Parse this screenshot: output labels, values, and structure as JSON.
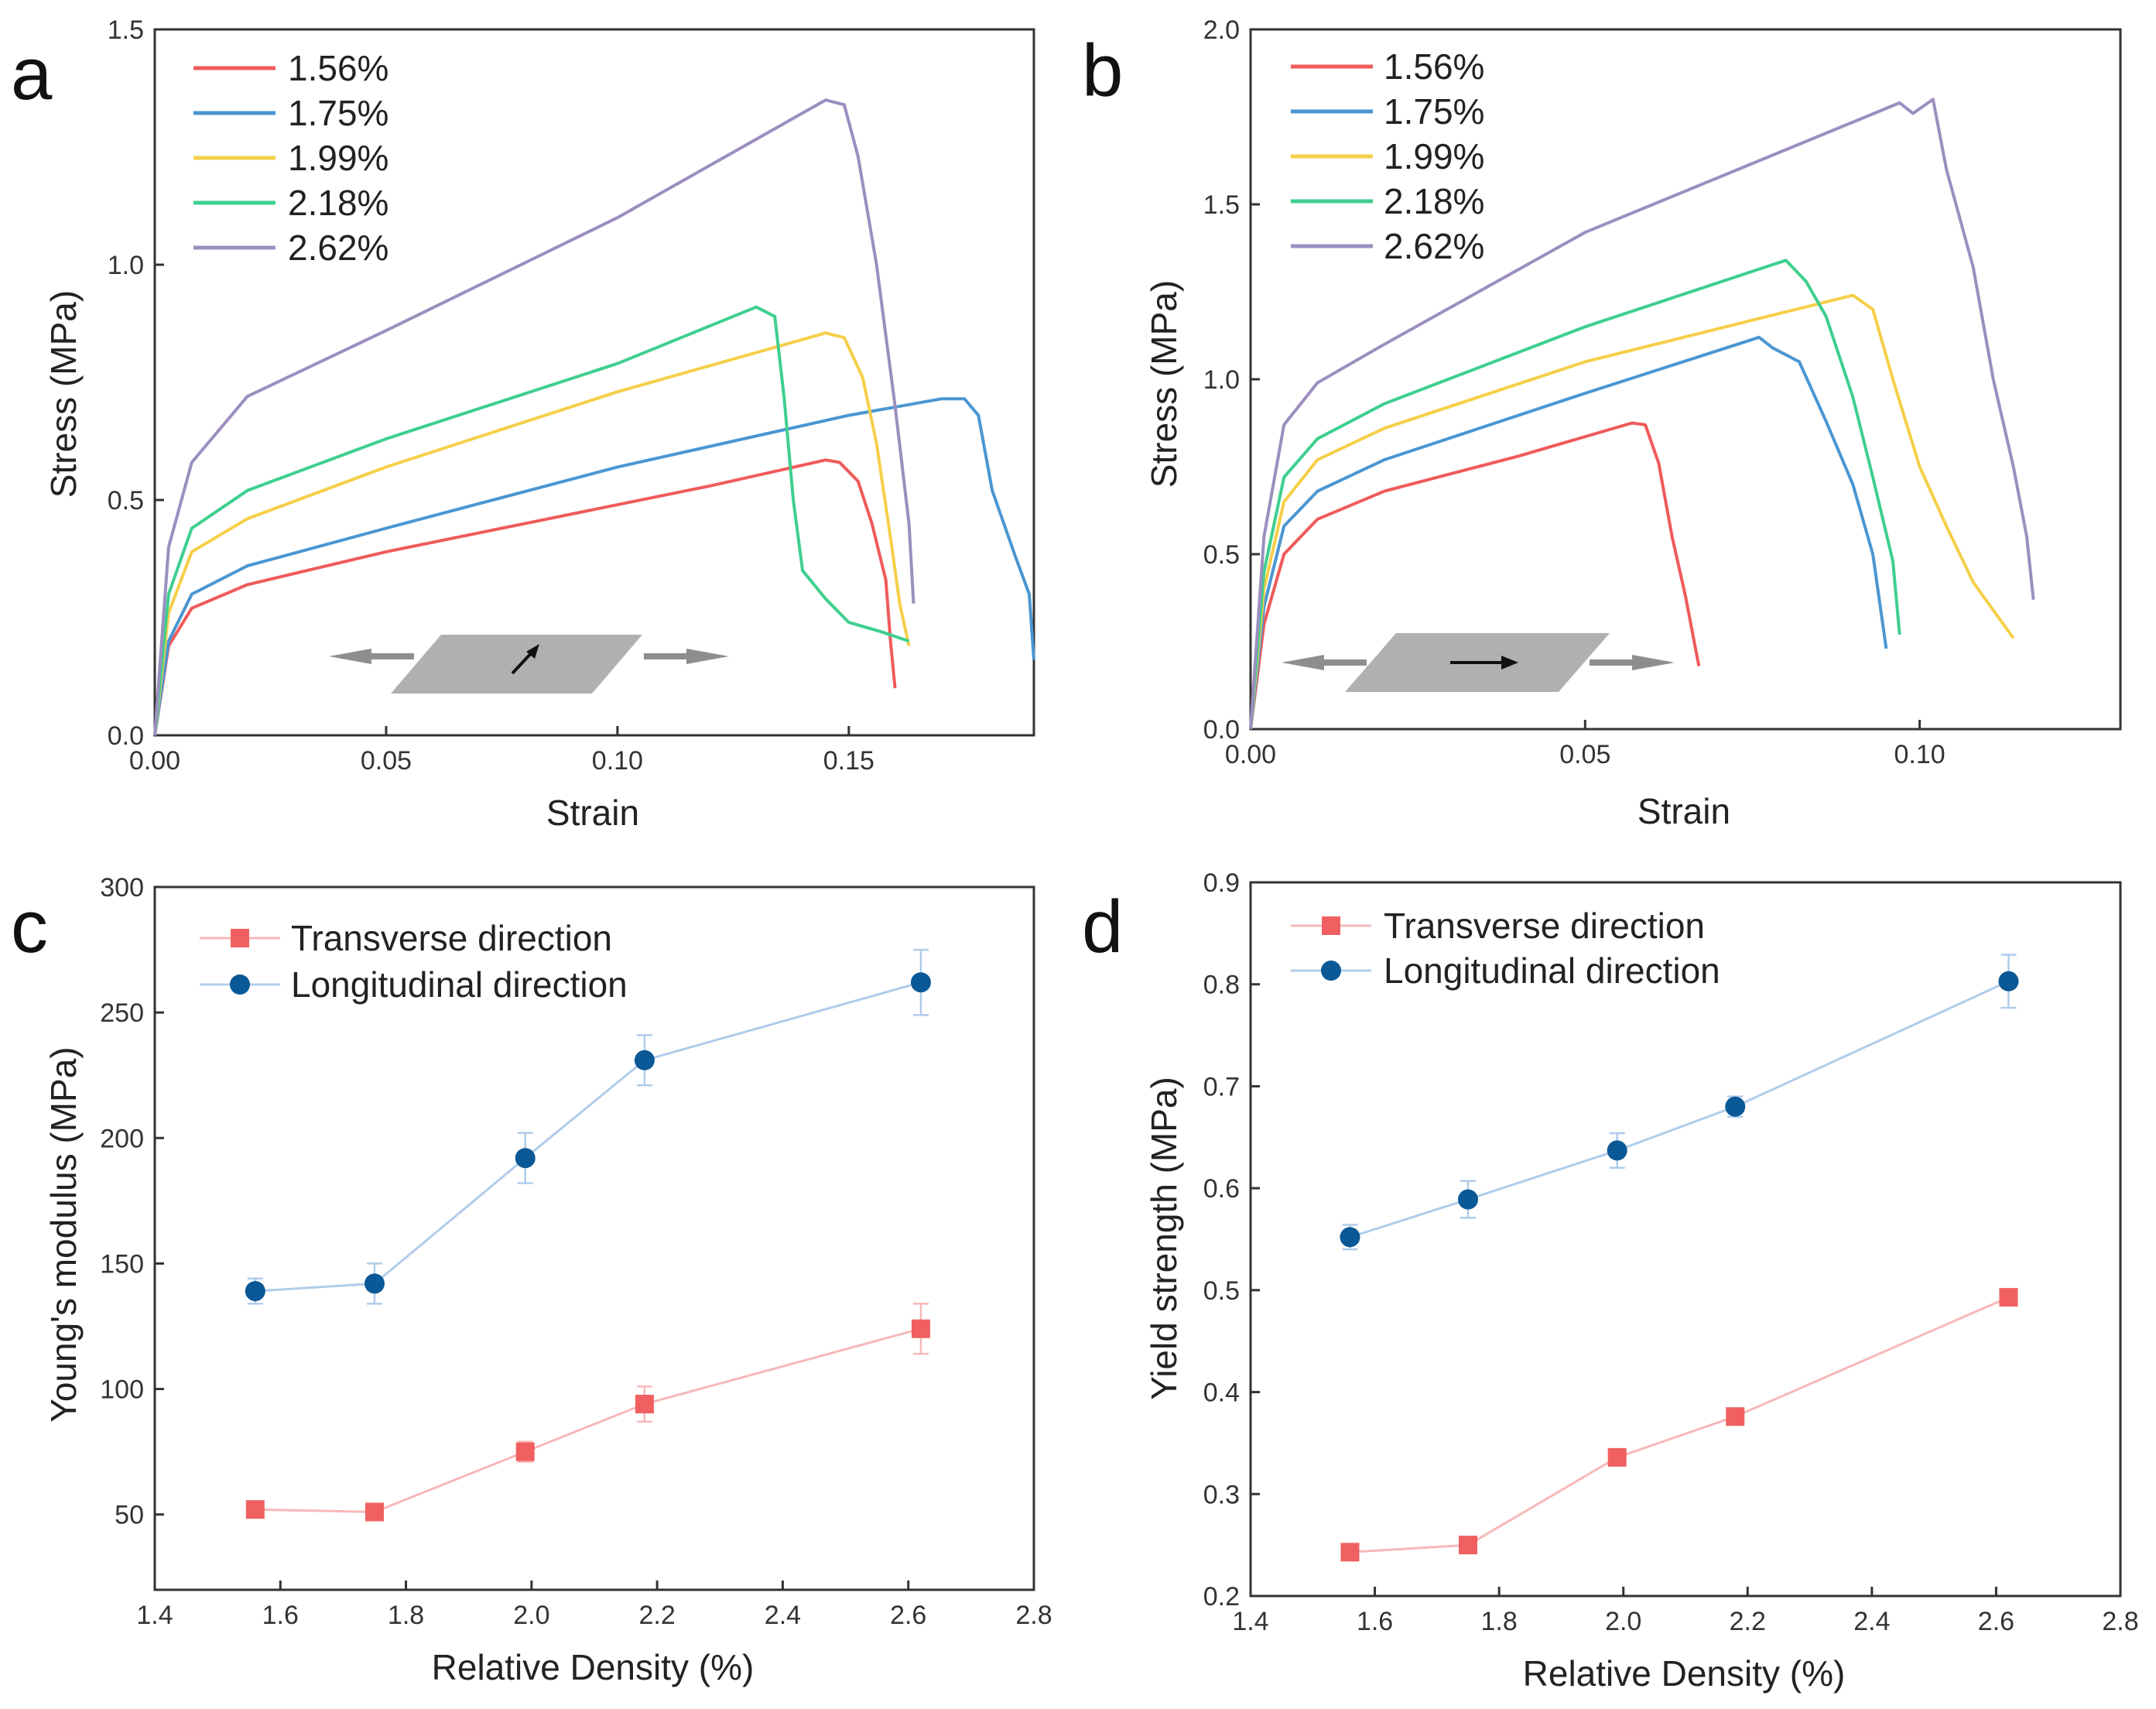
{
  "colors": {
    "c156": "#f05a5a",
    "c175": "#4a96d2",
    "c199": "#f5cf48",
    "c218": "#3ecf8e",
    "c262": "#9c8ec0",
    "transverse": "#f06060",
    "transverse_line": "#f7b8b8",
    "longitudinal": "#0a5896",
    "longitudinal_line": "#b0ccea",
    "specimen": "#b0b0b0",
    "arrow": "#8e8e8e"
  },
  "chart_data": [
    {
      "id": "a",
      "panel_label": "a",
      "type": "line",
      "xlabel": "Strain",
      "ylabel": "Stress (MPa)",
      "xlim": [
        0,
        0.19
      ],
      "ylim": [
        0,
        1.5
      ],
      "xticks": [
        "0.00",
        "0.05",
        "0.10",
        "0.15"
      ],
      "yticks": [
        "0.0",
        "0.5",
        "1.0",
        "1.5"
      ],
      "legend_position": "top-left",
      "inset": "specimen-transverse",
      "series": [
        {
          "name": "1.56%",
          "color_key": "c156",
          "points": [
            [
              0,
              0
            ],
            [
              0.003,
              0.19
            ],
            [
              0.008,
              0.27
            ],
            [
              0.02,
              0.32
            ],
            [
              0.05,
              0.39
            ],
            [
              0.08,
              0.45
            ],
            [
              0.12,
              0.53
            ],
            [
              0.145,
              0.585
            ],
            [
              0.148,
              0.58
            ],
            [
              0.152,
              0.54
            ],
            [
              0.155,
              0.45
            ],
            [
              0.158,
              0.33
            ],
            [
              0.159,
              0.2
            ],
            [
              0.16,
              0.1
            ]
          ]
        },
        {
          "name": "1.75%",
          "color_key": "c175",
          "points": [
            [
              0,
              0
            ],
            [
              0.003,
              0.2
            ],
            [
              0.008,
              0.3
            ],
            [
              0.02,
              0.36
            ],
            [
              0.05,
              0.44
            ],
            [
              0.1,
              0.57
            ],
            [
              0.15,
              0.68
            ],
            [
              0.17,
              0.715
            ],
            [
              0.175,
              0.715
            ],
            [
              0.178,
              0.68
            ],
            [
              0.181,
              0.52
            ],
            [
              0.186,
              0.38
            ],
            [
              0.189,
              0.3
            ],
            [
              0.19,
              0.16
            ]
          ]
        },
        {
          "name": "1.99%",
          "color_key": "c199",
          "points": [
            [
              0,
              0
            ],
            [
              0.003,
              0.26
            ],
            [
              0.008,
              0.39
            ],
            [
              0.02,
              0.46
            ],
            [
              0.05,
              0.57
            ],
            [
              0.1,
              0.73
            ],
            [
              0.145,
              0.855
            ],
            [
              0.149,
              0.845
            ],
            [
              0.153,
              0.76
            ],
            [
              0.156,
              0.62
            ],
            [
              0.159,
              0.42
            ],
            [
              0.161,
              0.28
            ],
            [
              0.163,
              0.19
            ]
          ]
        },
        {
          "name": "2.18%",
          "color_key": "c218",
          "points": [
            [
              0,
              0
            ],
            [
              0.003,
              0.3
            ],
            [
              0.008,
              0.44
            ],
            [
              0.02,
              0.52
            ],
            [
              0.05,
              0.63
            ],
            [
              0.1,
              0.79
            ],
            [
              0.13,
              0.91
            ],
            [
              0.134,
              0.89
            ],
            [
              0.136,
              0.72
            ],
            [
              0.138,
              0.5
            ],
            [
              0.14,
              0.35
            ],
            [
              0.145,
              0.29
            ],
            [
              0.15,
              0.24
            ],
            [
              0.157,
              0.22
            ],
            [
              0.163,
              0.2
            ]
          ]
        },
        {
          "name": "2.62%",
          "color_key": "c262",
          "points": [
            [
              0,
              0
            ],
            [
              0.003,
              0.4
            ],
            [
              0.008,
              0.58
            ],
            [
              0.02,
              0.72
            ],
            [
              0.05,
              0.86
            ],
            [
              0.1,
              1.1
            ],
            [
              0.145,
              1.35
            ],
            [
              0.149,
              1.34
            ],
            [
              0.152,
              1.23
            ],
            [
              0.156,
              1.0
            ],
            [
              0.16,
              0.7
            ],
            [
              0.163,
              0.45
            ],
            [
              0.164,
              0.28
            ]
          ]
        }
      ]
    },
    {
      "id": "b",
      "panel_label": "b",
      "type": "line",
      "xlabel": "Strain",
      "ylabel": "Stress (MPa)",
      "xlim": [
        0,
        0.13
      ],
      "ylim": [
        0,
        2.0
      ],
      "xticks": [
        "0.00",
        "0.05",
        "0.10"
      ],
      "yticks": [
        "0.0",
        "0.5",
        "1.0",
        "1.5",
        "2.0"
      ],
      "legend_position": "top-left",
      "inset": "specimen-longitudinal",
      "series": [
        {
          "name": "1.56%",
          "color_key": "c156",
          "points": [
            [
              0,
              0
            ],
            [
              0.002,
              0.3
            ],
            [
              0.005,
              0.5
            ],
            [
              0.01,
              0.6
            ],
            [
              0.02,
              0.68
            ],
            [
              0.04,
              0.78
            ],
            [
              0.057,
              0.875
            ],
            [
              0.059,
              0.87
            ],
            [
              0.061,
              0.76
            ],
            [
              0.063,
              0.55
            ],
            [
              0.065,
              0.38
            ],
            [
              0.067,
              0.18
            ]
          ]
        },
        {
          "name": "1.75%",
          "color_key": "c175",
          "points": [
            [
              0,
              0
            ],
            [
              0.002,
              0.35
            ],
            [
              0.005,
              0.58
            ],
            [
              0.01,
              0.68
            ],
            [
              0.02,
              0.77
            ],
            [
              0.05,
              0.96
            ],
            [
              0.076,
              1.12
            ],
            [
              0.078,
              1.09
            ],
            [
              0.082,
              1.05
            ],
            [
              0.086,
              0.88
            ],
            [
              0.09,
              0.7
            ],
            [
              0.093,
              0.5
            ],
            [
              0.095,
              0.23
            ]
          ]
        },
        {
          "name": "1.99%",
          "color_key": "c199",
          "points": [
            [
              0,
              0
            ],
            [
              0.002,
              0.4
            ],
            [
              0.005,
              0.65
            ],
            [
              0.01,
              0.77
            ],
            [
              0.02,
              0.86
            ],
            [
              0.05,
              1.05
            ],
            [
              0.09,
              1.24
            ],
            [
              0.093,
              1.2
            ],
            [
              0.096,
              1.0
            ],
            [
              0.1,
              0.75
            ],
            [
              0.104,
              0.58
            ],
            [
              0.108,
              0.42
            ],
            [
              0.114,
              0.26
            ]
          ]
        },
        {
          "name": "2.18%",
          "color_key": "c218",
          "points": [
            [
              0,
              0
            ],
            [
              0.002,
              0.45
            ],
            [
              0.005,
              0.72
            ],
            [
              0.01,
              0.83
            ],
            [
              0.02,
              0.93
            ],
            [
              0.05,
              1.15
            ],
            [
              0.08,
              1.34
            ],
            [
              0.083,
              1.28
            ],
            [
              0.086,
              1.18
            ],
            [
              0.09,
              0.95
            ],
            [
              0.093,
              0.72
            ],
            [
              0.096,
              0.48
            ],
            [
              0.097,
              0.27
            ]
          ]
        },
        {
          "name": "2.62%",
          "color_key": "c262",
          "points": [
            [
              0,
              0
            ],
            [
              0.002,
              0.55
            ],
            [
              0.005,
              0.87
            ],
            [
              0.01,
              0.99
            ],
            [
              0.02,
              1.1
            ],
            [
              0.05,
              1.42
            ],
            [
              0.097,
              1.79
            ],
            [
              0.099,
              1.76
            ],
            [
              0.102,
              1.8
            ],
            [
              0.104,
              1.6
            ],
            [
              0.108,
              1.32
            ],
            [
              0.111,
              1.0
            ],
            [
              0.114,
              0.75
            ],
            [
              0.116,
              0.55
            ],
            [
              0.117,
              0.37
            ]
          ]
        }
      ]
    },
    {
      "id": "c",
      "panel_label": "c",
      "type": "scatter",
      "xlabel": "Relative Density (%)",
      "ylabel": "Young's modulus (MPa)",
      "xlim": [
        1.4,
        2.8
      ],
      "ylim": [
        20,
        300
      ],
      "xticks": [
        "1.4",
        "1.6",
        "1.8",
        "2.0",
        "2.2",
        "2.4",
        "2.6",
        "2.8"
      ],
      "yticks": [
        "50",
        "100",
        "150",
        "200",
        "250",
        "300"
      ],
      "legend_position": "top-left",
      "series": [
        {
          "name": "Transverse direction",
          "marker": "square",
          "color_key": "transverse",
          "line_key": "transverse_line",
          "x": [
            1.56,
            1.75,
            1.99,
            2.18,
            2.62
          ],
          "y": [
            52,
            51,
            75,
            94,
            124
          ],
          "err": [
            2,
            2,
            4,
            7,
            10
          ]
        },
        {
          "name": "Longitudinal direction",
          "marker": "circle",
          "color_key": "longitudinal",
          "line_key": "longitudinal_line",
          "x": [
            1.56,
            1.75,
            1.99,
            2.18,
            2.62
          ],
          "y": [
            139,
            142,
            192,
            231,
            262
          ],
          "err": [
            5,
            8,
            10,
            10,
            13
          ]
        }
      ]
    },
    {
      "id": "d",
      "panel_label": "d",
      "type": "scatter",
      "xlabel": "Relative Density (%)",
      "ylabel": "Yield strength (MPa)",
      "xlim": [
        1.4,
        2.8
      ],
      "ylim": [
        0.2,
        0.9
      ],
      "xticks": [
        "1.4",
        "1.6",
        "1.8",
        "2.0",
        "2.2",
        "2.4",
        "2.6",
        "2.8"
      ],
      "yticks": [
        "0.2",
        "0.3",
        "0.4",
        "0.5",
        "0.6",
        "0.7",
        "0.8",
        "0.9"
      ],
      "legend_position": "top-left",
      "series": [
        {
          "name": "Transverse direction",
          "marker": "square",
          "color_key": "transverse",
          "line_key": "transverse_line",
          "x": [
            1.56,
            1.75,
            1.99,
            2.18,
            2.62
          ],
          "y": [
            0.243,
            0.25,
            0.336,
            0.376,
            0.493
          ],
          "err": [
            0.005,
            0.006,
            0.005,
            0.005,
            0.005
          ]
        },
        {
          "name": "Longitudinal direction",
          "marker": "circle",
          "color_key": "longitudinal",
          "line_key": "longitudinal_line",
          "x": [
            1.56,
            1.75,
            1.99,
            2.18,
            2.62
          ],
          "y": [
            0.552,
            0.589,
            0.637,
            0.68,
            0.803
          ],
          "err": [
            0.012,
            0.018,
            0.017,
            0.01,
            0.026
          ]
        }
      ]
    }
  ]
}
